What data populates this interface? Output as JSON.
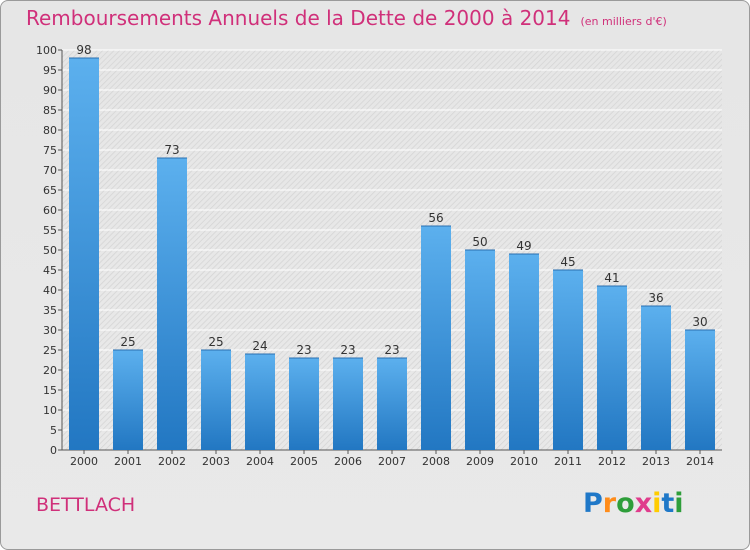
{
  "title": "Remboursements Annuels de la Dette de 2000 à 2014",
  "subtitle": "(en milliers d'€)",
  "region_label": "BETTLACH",
  "logo": {
    "letters": [
      "P",
      "r",
      "o",
      "x",
      "i",
      "t",
      "i"
    ],
    "colors": [
      "#1f78c8",
      "#ff8c1a",
      "#2e9e3a",
      "#e03c8c",
      "#ffcc00",
      "#1f78c8",
      "#2e9e3a"
    ]
  },
  "colors": {
    "bar": "#3d95dc",
    "bar_light": "#5cb0ee",
    "bar_dark": "#2277c2",
    "accent": "#d0307a"
  },
  "chart_data": {
    "type": "bar",
    "categories": [
      "2000",
      "2001",
      "2002",
      "2003",
      "2004",
      "2005",
      "2006",
      "2007",
      "2008",
      "2009",
      "2010",
      "2011",
      "2012",
      "2013",
      "2014"
    ],
    "values": [
      98,
      25,
      73,
      25,
      24,
      23,
      23,
      23,
      56,
      50,
      49,
      45,
      41,
      36,
      30
    ],
    "ylim": [
      0,
      100
    ],
    "yticks": [
      0,
      5,
      10,
      15,
      20,
      25,
      30,
      35,
      40,
      45,
      50,
      55,
      60,
      65,
      70,
      75,
      80,
      85,
      90,
      95,
      100
    ],
    "grid": true,
    "data_labels": true
  }
}
